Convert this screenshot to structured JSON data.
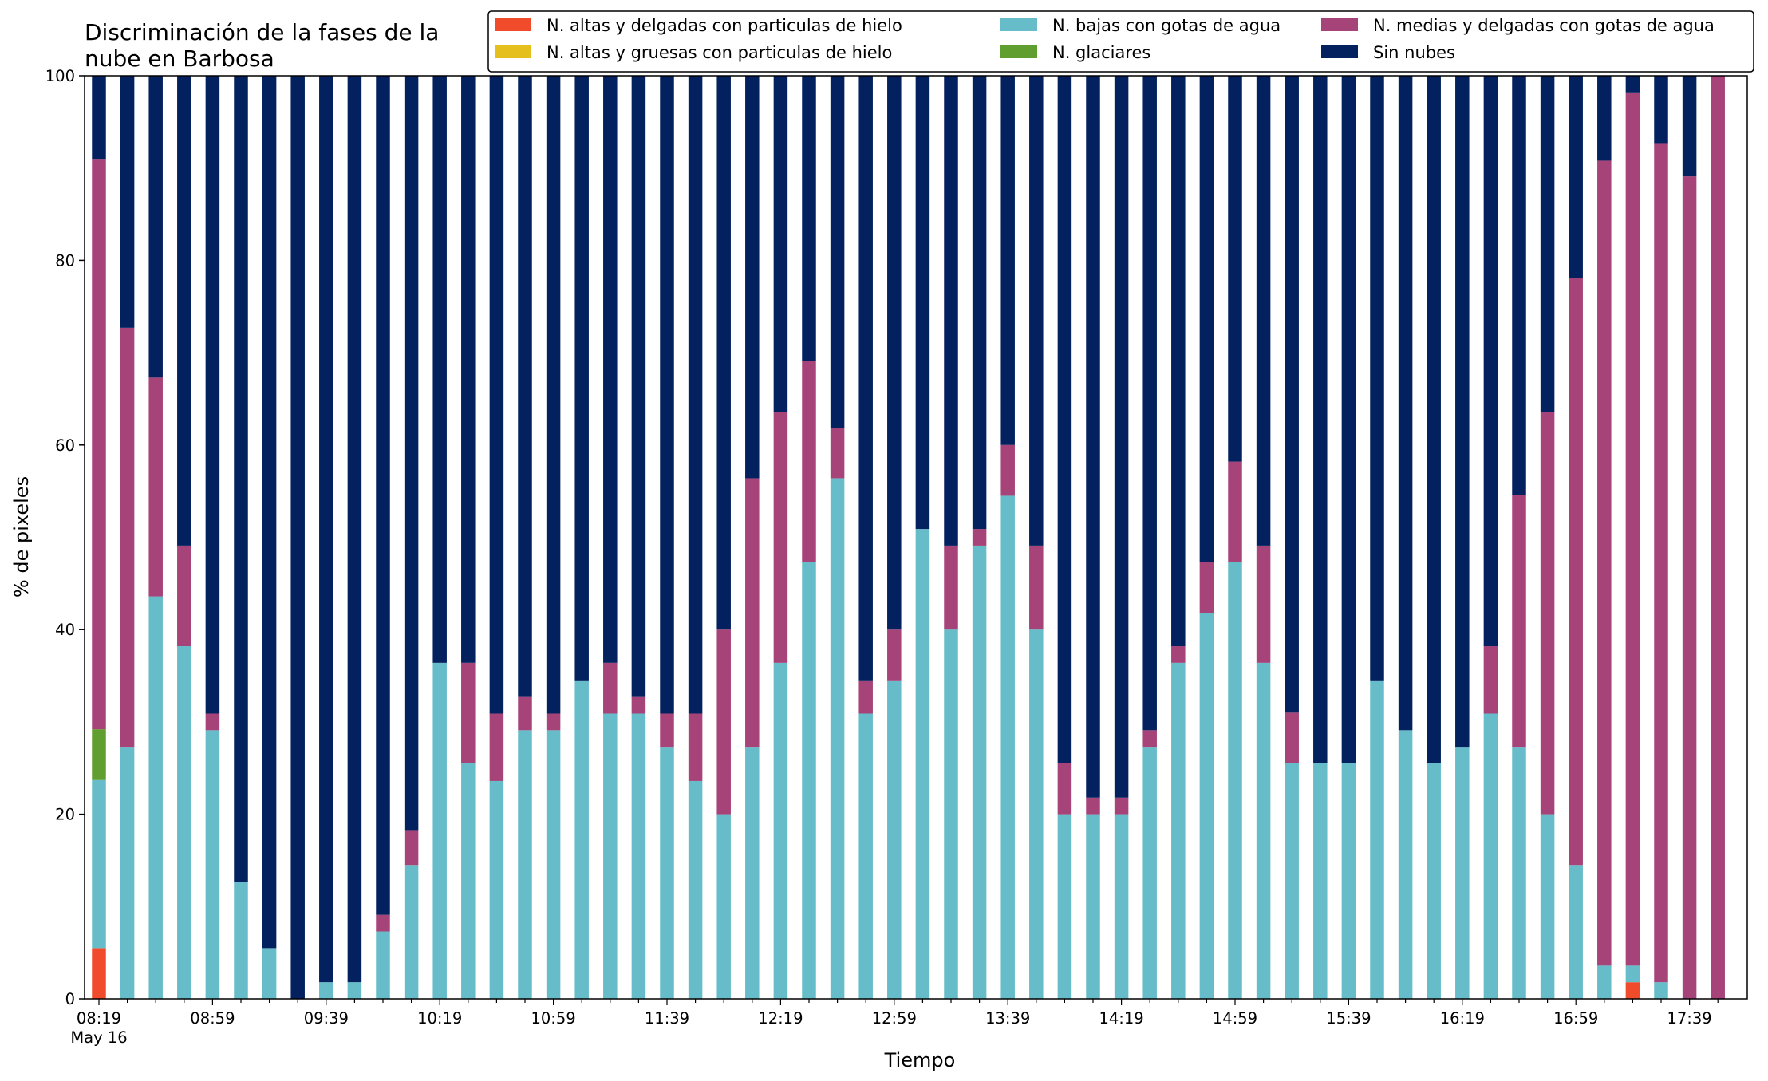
{
  "chart_data": {
    "type": "bar",
    "stacked": true,
    "title": "Discriminación de la fases de la nube en Barbosa",
    "title_lines": [
      "Discriminación de la fases de la",
      "nube en Barbosa"
    ],
    "xlabel": "Tiempo",
    "ylabel": "% de pixeles",
    "ylim": [
      0,
      100
    ],
    "yticks": [
      0,
      20,
      40,
      60,
      80,
      100
    ],
    "grid": false,
    "legend_position": "top-right",
    "x_start": "08:19",
    "x_step_minutes": 10,
    "x_tick_labels": [
      "08:19",
      "08:59",
      "09:39",
      "10:19",
      "10:59",
      "11:39",
      "12:19",
      "12:59",
      "13:39",
      "14:19",
      "14:59",
      "15:39",
      "16:19",
      "16:59",
      "17:39"
    ],
    "x_date_label": "May 16",
    "categories": [
      "08:19",
      "08:29",
      "08:39",
      "08:49",
      "08:59",
      "09:09",
      "09:19",
      "09:29",
      "09:39",
      "09:49",
      "09:59",
      "10:09",
      "10:19",
      "10:29",
      "10:39",
      "10:49",
      "10:59",
      "11:09",
      "11:19",
      "11:29",
      "11:39",
      "11:49",
      "11:59",
      "12:09",
      "12:19",
      "12:29",
      "12:39",
      "12:49",
      "12:59",
      "13:09",
      "13:19",
      "13:29",
      "13:39",
      "13:49",
      "13:59",
      "14:09",
      "14:19",
      "14:29",
      "14:39",
      "14:49",
      "14:59",
      "15:09",
      "15:19",
      "15:29",
      "15:39",
      "15:49",
      "15:59",
      "16:09",
      "16:19",
      "16:29",
      "16:39",
      "16:49",
      "16:59",
      "17:09",
      "17:19",
      "17:29",
      "17:39",
      "17:49"
    ],
    "series": [
      {
        "name": "N. altas y delgadas con particulas de hielo",
        "color": "#f04c2c",
        "values": [
          5.5,
          0,
          0,
          0,
          0,
          0,
          0,
          0,
          0,
          0,
          0,
          0,
          0,
          0,
          0,
          0,
          0,
          0,
          0,
          0,
          0,
          0,
          0,
          0,
          0,
          0,
          0,
          0,
          0,
          0,
          0,
          0,
          0,
          0,
          0,
          0,
          0,
          0,
          0,
          0,
          0,
          0,
          0,
          0,
          0,
          0,
          0,
          0,
          0,
          0,
          0,
          0,
          0,
          0,
          1.8,
          0,
          0,
          0
        ]
      },
      {
        "name": "N. altas y gruesas con particulas de hielo",
        "color": "#e5bf1e",
        "values": [
          0,
          0,
          0,
          0,
          0,
          0,
          0,
          0,
          0,
          0,
          0,
          0,
          0,
          0,
          0,
          0,
          0,
          0,
          0,
          0,
          0,
          0,
          0,
          0,
          0,
          0,
          0,
          0,
          0,
          0,
          0,
          0,
          0,
          0,
          0,
          0,
          0,
          0,
          0,
          0,
          0,
          0,
          0,
          0,
          0,
          0,
          0,
          0,
          0,
          0,
          0,
          0,
          0,
          0,
          0,
          0,
          0,
          0
        ]
      },
      {
        "name": "N. bajas con gotas de agua",
        "color": "#66bdc9",
        "values": [
          18.2,
          27.3,
          43.6,
          38.2,
          29.1,
          12.7,
          5.5,
          0,
          1.8,
          1.8,
          7.3,
          14.5,
          36.4,
          25.5,
          23.6,
          29.1,
          29.1,
          34.5,
          30.9,
          30.9,
          27.3,
          23.6,
          20.0,
          27.3,
          36.4,
          47.3,
          56.4,
          30.9,
          34.5,
          50.9,
          40.0,
          49.1,
          54.5,
          40.0,
          20.0,
          20.0,
          20.0,
          27.3,
          36.4,
          41.8,
          47.3,
          36.4,
          25.5,
          25.5,
          25.5,
          34.5,
          29.1,
          25.5,
          27.3,
          30.9,
          27.3,
          20.0,
          14.5,
          3.6,
          1.8,
          1.8,
          0,
          0
        ]
      },
      {
        "name": "N. glaciares",
        "color": "#5f9e2f",
        "values": [
          5.5,
          0,
          0,
          0,
          0,
          0,
          0,
          0,
          0,
          0,
          0,
          0,
          0,
          0,
          0,
          0,
          0,
          0,
          0,
          0,
          0,
          0,
          0,
          0,
          0,
          0,
          0,
          0,
          0,
          0,
          0,
          0,
          0,
          0,
          0,
          0,
          0,
          0,
          0,
          0,
          0,
          0,
          0,
          0,
          0,
          0,
          0,
          0,
          0,
          0,
          0,
          0,
          0,
          0,
          0,
          0,
          0,
          0
        ]
      },
      {
        "name": "N. medias y delgadas con gotas de agua",
        "color": "#a64378",
        "values": [
          61.8,
          45.4,
          23.7,
          10.9,
          1.8,
          0,
          0,
          0,
          0,
          0,
          1.8,
          3.7,
          0,
          10.9,
          7.3,
          3.6,
          1.8,
          0,
          5.5,
          1.8,
          3.6,
          7.3,
          20.0,
          29.1,
          27.2,
          21.8,
          5.4,
          3.6,
          5.5,
          0,
          9.1,
          1.8,
          5.5,
          9.1,
          5.5,
          1.8,
          1.8,
          1.8,
          1.8,
          5.5,
          10.9,
          12.7,
          5.5,
          0,
          0,
          0,
          0,
          0,
          0,
          7.3,
          27.3,
          43.6,
          63.6,
          87.2,
          94.6,
          90.9,
          89.1,
          100
        ]
      },
      {
        "name": "Sin nubes",
        "color": "#03215f",
        "values": [
          9.0,
          27.3,
          32.7,
          50.9,
          69.1,
          87.3,
          94.5,
          100,
          98.2,
          98.2,
          90.9,
          81.8,
          63.6,
          63.6,
          69.1,
          67.3,
          69.1,
          65.5,
          63.6,
          67.3,
          69.1,
          69.1,
          60.0,
          43.6,
          36.4,
          30.9,
          38.2,
          65.5,
          60.0,
          49.1,
          50.9,
          49.1,
          40.0,
          50.9,
          74.5,
          78.2,
          78.2,
          70.9,
          61.8,
          52.7,
          41.8,
          50.9,
          69.0,
          74.5,
          74.5,
          65.5,
          70.9,
          74.5,
          72.7,
          61.8,
          45.4,
          36.4,
          21.9,
          9.2,
          1.8,
          7.3,
          10.9,
          0
        ]
      }
    ]
  }
}
